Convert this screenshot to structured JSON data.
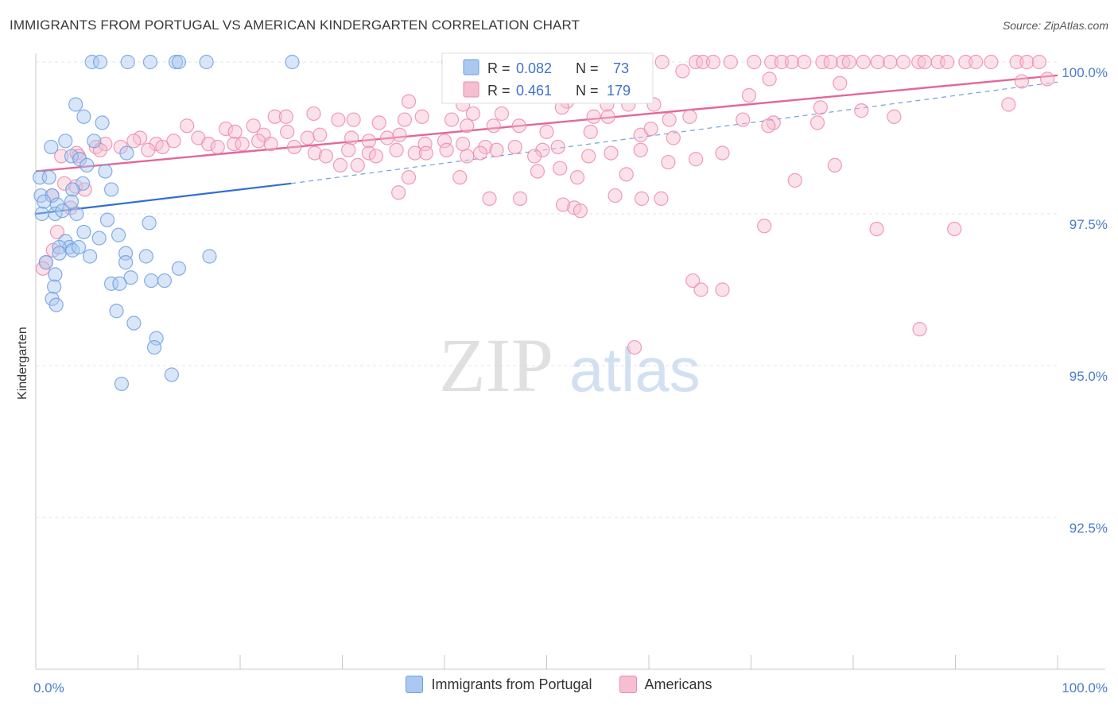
{
  "header": {
    "title": "IMMIGRANTS FROM PORTUGAL VS AMERICAN KINDERGARTEN CORRELATION CHART",
    "source": "Source: ZipAtlas.com"
  },
  "watermark": {
    "zip": "ZIP",
    "atlas": "atlas"
  },
  "colors": {
    "blue": "#6fa0e3",
    "blue_fill": "#aac8f0",
    "blue_line": "#2f6fd0",
    "pink": "#ee8aab",
    "pink_fill": "#f6bfd1",
    "pink_line": "#e2679a",
    "tick_label": "#4a7cc8",
    "grid": "#e2e6ec"
  },
  "legend": {
    "rows": [
      {
        "r_label": "R = ",
        "r_value": "0.082",
        "n_label": "N = ",
        "n_value": "73"
      },
      {
        "r_label": "R = ",
        "r_value": "0.461",
        "n_label": "N = ",
        "n_value": "179"
      }
    ]
  },
  "bottom_legend": {
    "series1": "Immigrants from Portugal",
    "series2": "Americans"
  },
  "chart_data": {
    "type": "scatter",
    "title": "IMMIGRANTS FROM PORTUGAL VS AMERICAN KINDERGARTEN CORRELATION CHART",
    "xlabel": "",
    "ylabel": "Kindergarten",
    "xlim": [
      0,
      100
    ],
    "ylim": [
      90.0,
      100.3
    ],
    "x_tick_labels": [
      "0.0%",
      "100.0%"
    ],
    "y_ticks": [
      92.5,
      95.0,
      97.5,
      100.0
    ],
    "y_tick_labels": [
      "92.5%",
      "95.0%",
      "97.5%",
      "100.0%"
    ],
    "grid": true,
    "legend_position": "top-center",
    "series": [
      {
        "name": "Immigrants from Portugal",
        "color": "#6fa0e3",
        "r": 0.082,
        "n": 73,
        "trend": {
          "x": [
            0,
            25
          ],
          "y": [
            97.5,
            98.0
          ]
        },
        "trend_dashed": {
          "x": [
            25,
            100
          ],
          "y": [
            98.0,
            99.67
          ]
        },
        "points": [
          [
            5.5,
            100
          ],
          [
            6.3,
            100
          ],
          [
            9,
            100
          ],
          [
            11.2,
            100
          ],
          [
            13.7,
            100
          ],
          [
            14,
            100
          ],
          [
            16.7,
            100
          ],
          [
            25.1,
            100
          ],
          [
            3.9,
            99.3
          ],
          [
            4.7,
            99.1
          ],
          [
            6.5,
            99.0
          ],
          [
            1.5,
            98.6
          ],
          [
            2.9,
            98.7
          ],
          [
            5.7,
            98.7
          ],
          [
            3.5,
            98.45
          ],
          [
            4.3,
            98.4
          ],
          [
            8.9,
            98.5
          ],
          [
            0.4,
            98.1
          ],
          [
            1.3,
            98.1
          ],
          [
            5,
            98.3
          ],
          [
            4.6,
            98.0
          ],
          [
            6.8,
            98.2
          ],
          [
            3.6,
            97.9
          ],
          [
            7.4,
            97.9
          ],
          [
            0.5,
            97.8
          ],
          [
            1.6,
            97.8
          ],
          [
            0.8,
            97.7
          ],
          [
            2.1,
            97.65
          ],
          [
            3.5,
            97.7
          ],
          [
            0.6,
            97.5
          ],
          [
            1.9,
            97.5
          ],
          [
            2.6,
            97.55
          ],
          [
            4.0,
            97.5
          ],
          [
            7,
            97.4
          ],
          [
            11.1,
            97.35
          ],
          [
            4.7,
            97.2
          ],
          [
            8.1,
            97.15
          ],
          [
            6.2,
            97.1
          ],
          [
            2.9,
            97.05
          ],
          [
            3.3,
            96.95
          ],
          [
            3.6,
            96.9
          ],
          [
            2.3,
            96.95
          ],
          [
            4.2,
            96.95
          ],
          [
            1.0,
            96.7
          ],
          [
            2.3,
            96.85
          ],
          [
            5.3,
            96.8
          ],
          [
            8.8,
            96.85
          ],
          [
            10.8,
            96.8
          ],
          [
            17,
            96.8
          ],
          [
            8.8,
            96.7
          ],
          [
            14,
            96.6
          ],
          [
            1.9,
            96.5
          ],
          [
            9.3,
            96.45
          ],
          [
            11.3,
            96.4
          ],
          [
            12.6,
            96.4
          ],
          [
            7.4,
            96.35
          ],
          [
            8.2,
            96.35
          ],
          [
            1.8,
            96.3
          ],
          [
            1.6,
            96.1
          ],
          [
            2.0,
            96.0
          ],
          [
            7.9,
            95.9
          ],
          [
            9.6,
            95.7
          ],
          [
            11.8,
            95.45
          ],
          [
            11.6,
            95.3
          ],
          [
            13.3,
            94.85
          ],
          [
            8.4,
            94.7
          ]
        ]
      },
      {
        "name": "Americans",
        "color": "#ee8aab",
        "r": 0.461,
        "n": 179,
        "trend": {
          "x": [
            0,
            100
          ],
          "y": [
            98.2,
            99.78
          ]
        },
        "points": [
          [
            40.4,
            100
          ],
          [
            45.2,
            100
          ],
          [
            61.3,
            100
          ],
          [
            64.6,
            100
          ],
          [
            65.3,
            100
          ],
          [
            66.3,
            100
          ],
          [
            68,
            100
          ],
          [
            70.3,
            100
          ],
          [
            72,
            100
          ],
          [
            73,
            100
          ],
          [
            74,
            100
          ],
          [
            75.2,
            100
          ],
          [
            77,
            100
          ],
          [
            77.8,
            100
          ],
          [
            79,
            100
          ],
          [
            79.6,
            100
          ],
          [
            81,
            100
          ],
          [
            82.4,
            100
          ],
          [
            83.6,
            100
          ],
          [
            84.9,
            100
          ],
          [
            86.4,
            100
          ],
          [
            87,
            100
          ],
          [
            88.3,
            100
          ],
          [
            89.2,
            100
          ],
          [
            91,
            100
          ],
          [
            92,
            100
          ],
          [
            93.5,
            100
          ],
          [
            96,
            100
          ],
          [
            97,
            100
          ],
          [
            98.2,
            100
          ],
          [
            55.5,
            99.8
          ],
          [
            59,
            99.85
          ],
          [
            63.3,
            99.85
          ],
          [
            71.8,
            99.72
          ],
          [
            78.7,
            99.65
          ],
          [
            96.5,
            99.68
          ],
          [
            99,
            99.72
          ],
          [
            52.5,
            99.6
          ],
          [
            69.8,
            99.45
          ],
          [
            46.1,
            99.5
          ],
          [
            49.7,
            99.45
          ],
          [
            52,
            99.35
          ],
          [
            55.9,
            99.3
          ],
          [
            58,
            99.3
          ],
          [
            60.5,
            99.3
          ],
          [
            36.5,
            99.35
          ],
          [
            41.8,
            99.3
          ],
          [
            51.5,
            99.25
          ],
          [
            42.8,
            99.15
          ],
          [
            45.6,
            99.15
          ],
          [
            54.6,
            99.1
          ],
          [
            56,
            99.1
          ],
          [
            62,
            99.05
          ],
          [
            64,
            99.1
          ],
          [
            69.2,
            99.05
          ],
          [
            72.2,
            99.0
          ],
          [
            76.8,
            99.25
          ],
          [
            23.4,
            99.1
          ],
          [
            24.5,
            99.1
          ],
          [
            27.2,
            99.15
          ],
          [
            29.6,
            99.05
          ],
          [
            31.1,
            99.05
          ],
          [
            33.6,
            99.0
          ],
          [
            36.1,
            99.05
          ],
          [
            37.8,
            99.1
          ],
          [
            40.7,
            99.05
          ],
          [
            42.2,
            98.95
          ],
          [
            44.8,
            98.95
          ],
          [
            47.3,
            98.95
          ],
          [
            50,
            98.85
          ],
          [
            54.3,
            98.85
          ],
          [
            59.2,
            98.8
          ],
          [
            60.2,
            98.9
          ],
          [
            62.4,
            98.75
          ],
          [
            14.8,
            98.95
          ],
          [
            18.6,
            98.9
          ],
          [
            19.5,
            98.85
          ],
          [
            21.3,
            98.95
          ],
          [
            22.3,
            98.8
          ],
          [
            24.6,
            98.85
          ],
          [
            26.6,
            98.75
          ],
          [
            27.8,
            98.8
          ],
          [
            30.9,
            98.75
          ],
          [
            32.6,
            98.7
          ],
          [
            34.4,
            98.75
          ],
          [
            35.6,
            98.8
          ],
          [
            38.1,
            98.65
          ],
          [
            40,
            98.7
          ],
          [
            41.8,
            98.65
          ],
          [
            44,
            98.6
          ],
          [
            46.9,
            98.6
          ],
          [
            49.6,
            98.55
          ],
          [
            10.2,
            98.75
          ],
          [
            11.8,
            98.65
          ],
          [
            12.4,
            98.6
          ],
          [
            13.5,
            98.7
          ],
          [
            15.9,
            98.75
          ],
          [
            16.9,
            98.65
          ],
          [
            17.8,
            98.6
          ],
          [
            19.4,
            98.65
          ],
          [
            20.2,
            98.65
          ],
          [
            21.8,
            98.7
          ],
          [
            23,
            98.65
          ],
          [
            25.3,
            98.6
          ],
          [
            27.3,
            98.5
          ],
          [
            28.4,
            98.45
          ],
          [
            30.6,
            98.55
          ],
          [
            32.6,
            98.5
          ],
          [
            33.3,
            98.45
          ],
          [
            35.3,
            98.55
          ],
          [
            37.1,
            98.5
          ],
          [
            38.2,
            98.5
          ],
          [
            40.2,
            98.55
          ],
          [
            42.2,
            98.45
          ],
          [
            43.5,
            98.5
          ],
          [
            45.1,
            98.55
          ],
          [
            48.8,
            98.45
          ],
          [
            51.1,
            98.6
          ],
          [
            54.1,
            98.45
          ],
          [
            56.3,
            98.5
          ],
          [
            59.2,
            98.55
          ],
          [
            61.9,
            98.35
          ],
          [
            64.6,
            98.4
          ],
          [
            67.2,
            98.5
          ],
          [
            4.0,
            98.5
          ],
          [
            5.9,
            98.6
          ],
          [
            6.8,
            98.65
          ],
          [
            8.3,
            98.6
          ],
          [
            9.6,
            98.7
          ],
          [
            11,
            98.55
          ],
          [
            2.5,
            98.45
          ],
          [
            4.2,
            98.45
          ],
          [
            6.3,
            98.55
          ],
          [
            31.5,
            98.3
          ],
          [
            29.8,
            98.3
          ],
          [
            36.5,
            98.1
          ],
          [
            41.5,
            98.1
          ],
          [
            49.1,
            98.2
          ],
          [
            51.3,
            98.25
          ],
          [
            53,
            98.1
          ],
          [
            57.8,
            98.15
          ],
          [
            2.8,
            98.0
          ],
          [
            3.9,
            97.95
          ],
          [
            4.8,
            97.9
          ],
          [
            1.6,
            97.8
          ],
          [
            3.4,
            97.6
          ],
          [
            35.5,
            97.85
          ],
          [
            44.4,
            97.75
          ],
          [
            47.4,
            97.75
          ],
          [
            51.6,
            97.65
          ],
          [
            52.7,
            97.6
          ],
          [
            53.3,
            97.55
          ],
          [
            56.7,
            97.8
          ],
          [
            59.3,
            97.75
          ],
          [
            61.2,
            97.75
          ],
          [
            71.3,
            97.3
          ],
          [
            82.3,
            97.25
          ],
          [
            89.9,
            97.25
          ],
          [
            1.7,
            96.9
          ],
          [
            2.1,
            97.2
          ],
          [
            1.0,
            96.7
          ],
          [
            0.7,
            96.6
          ],
          [
            64.3,
            96.4
          ],
          [
            65.1,
            96.25
          ],
          [
            67.2,
            96.25
          ],
          [
            86.5,
            95.6
          ],
          [
            58.6,
            95.3
          ],
          [
            74.3,
            98.05
          ],
          [
            78.2,
            98.3
          ],
          [
            71.7,
            98.95
          ],
          [
            76.5,
            99.0
          ],
          [
            80.8,
            99.2
          ],
          [
            84,
            99.1
          ],
          [
            95.2,
            99.3
          ]
        ]
      }
    ]
  }
}
